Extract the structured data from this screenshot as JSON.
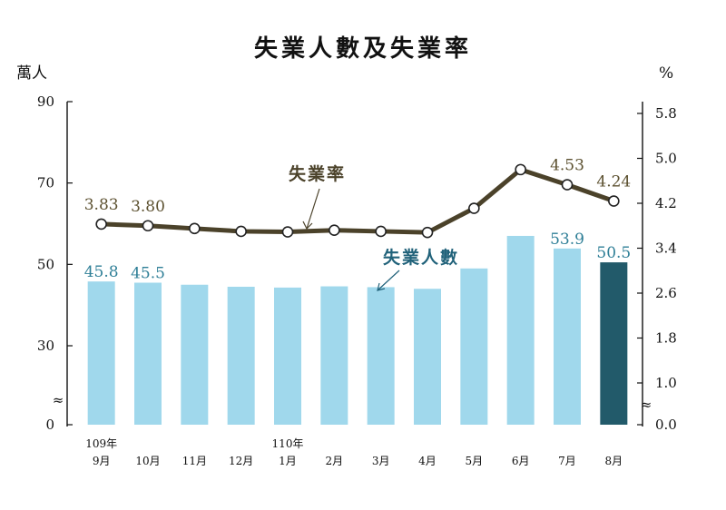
{
  "chart_data": {
    "type": "bar+line",
    "title": "失業人數及失業率",
    "y_left_unit": "萬人",
    "y_right_unit": "%",
    "y_left_ticks": [
      "0",
      "30",
      "50",
      "70",
      "90"
    ],
    "y_right_ticks": [
      "0.0",
      "1.0",
      "1.8",
      "2.6",
      "3.4",
      "4.2",
      "5.0",
      "5.8"
    ],
    "year_labels": [
      {
        "text": "109年",
        "index": 0
      },
      {
        "text": "110年",
        "index": 4
      }
    ],
    "categories": [
      "9月",
      "10月",
      "11月",
      "12月",
      "1月",
      "2月",
      "3月",
      "4月",
      "5月",
      "6月",
      "7月",
      "8月"
    ],
    "series": [
      {
        "name": "失業人數",
        "type": "bar",
        "axis": "left",
        "values": [
          45.8,
          45.5,
          45.0,
          44.5,
          44.3,
          44.6,
          44.4,
          44.0,
          49.0,
          57.0,
          53.9,
          50.5
        ],
        "labels": [
          "45.8",
          "45.5",
          "",
          "",
          "",
          "",
          "",
          "",
          "",
          "",
          "53.9",
          "50.5"
        ],
        "color": "#a0d8ec",
        "highlight_color": "#225a6a"
      },
      {
        "name": "失業率",
        "type": "line",
        "axis": "right",
        "values": [
          3.83,
          3.8,
          3.75,
          3.7,
          3.69,
          3.72,
          3.7,
          3.68,
          4.11,
          4.8,
          4.53,
          4.24
        ],
        "labels": [
          "3.83",
          "3.80",
          "",
          "",
          "",
          "",
          "",
          "",
          "",
          "",
          "4.53",
          "4.24"
        ],
        "color": "#4b422a"
      }
    ],
    "break_marker": "≈"
  }
}
